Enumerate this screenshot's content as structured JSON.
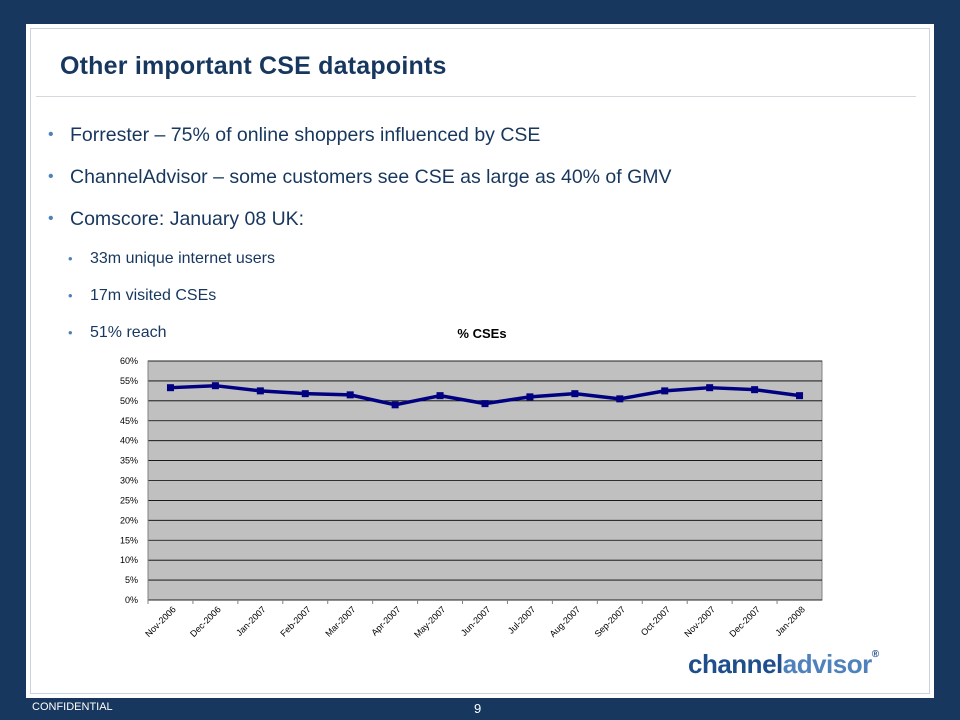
{
  "slide": {
    "title": "Other important CSE datapoints",
    "bullets": [
      {
        "level": 1,
        "text": "Forrester – 75% of online shoppers influenced by CSE"
      },
      {
        "level": 1,
        "text": "ChannelAdvisor – some customers see CSE as large as 40% of GMV"
      },
      {
        "level": 1,
        "text": "Comscore: January 08 UK:"
      },
      {
        "level": 2,
        "text": "33m unique internet users"
      },
      {
        "level": 2,
        "text": "17m visited CSEs"
      },
      {
        "level": 2,
        "text": "51% reach"
      }
    ],
    "footer": {
      "confidential": "CONFIDENTIAL",
      "page_number": "9"
    },
    "logo": {
      "part1": "channel",
      "part2": "advisor",
      "mark": "®"
    }
  },
  "colors": {
    "background": "#17375e",
    "title": "#17375e",
    "bullet": "#4f81bd",
    "plot_area": "#c0c0c0",
    "series_line": "#000080"
  },
  "chart_data": {
    "type": "line",
    "title": "% CSEs",
    "xlabel": "",
    "ylabel": "",
    "categories": [
      "Nov-2006",
      "Dec-2006",
      "Jan-2007",
      "Feb-2007",
      "Mar-2007",
      "Apr-2007",
      "May-2007",
      "Jun-2007",
      "Jul-2007",
      "Aug-2007",
      "Sep-2007",
      "Oct-2007",
      "Nov-2007",
      "Dec-2007",
      "Jan-2008"
    ],
    "series": [
      {
        "values": [
          53.3,
          53.8,
          52.5,
          51.8,
          51.5,
          49.0,
          51.3,
          49.3,
          51.0,
          51.8,
          50.5,
          52.5,
          53.3,
          52.8,
          51.3
        ]
      }
    ],
    "ylim": [
      0,
      60
    ],
    "yticks": [
      "0%",
      "5%",
      "10%",
      "15%",
      "20%",
      "25%",
      "30%",
      "35%",
      "40%",
      "45%",
      "50%",
      "55%",
      "60%"
    ],
    "grid": true,
    "legend": "none"
  }
}
